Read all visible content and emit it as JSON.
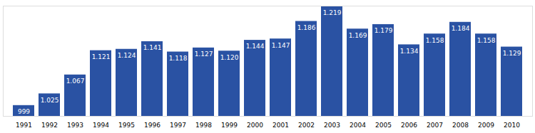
{
  "chart_data": {
    "type": "bar",
    "categories": [
      "1991",
      "1992",
      "1993",
      "1994",
      "1995",
      "1996",
      "1997",
      "1998",
      "1999",
      "2000",
      "2001",
      "2002",
      "2003",
      "2004",
      "2005",
      "2006",
      "2007",
      "2008",
      "2009",
      "2010"
    ],
    "values": [
      999,
      1025,
      1067,
      1121,
      1124,
      1141,
      1118,
      1127,
      1120,
      1144,
      1147,
      1186,
      1219,
      1169,
      1179,
      1134,
      1158,
      1184,
      1158,
      1129
    ],
    "value_labels": [
      "999",
      "1.025",
      "1.067",
      "1.121",
      "1.124",
      "1.141",
      "1.118",
      "1.127",
      "1.120",
      "1.144",
      "1.147",
      "1.186",
      "1.219",
      "1.169",
      "1.179",
      "1.134",
      "1.158",
      "1.184",
      "1.158",
      "1.129"
    ],
    "color": "#2a52a3",
    "ylim": [
      975,
      1220
    ],
    "yticks": [],
    "grid": false,
    "data_labels": true,
    "tick_labels": "x"
  }
}
